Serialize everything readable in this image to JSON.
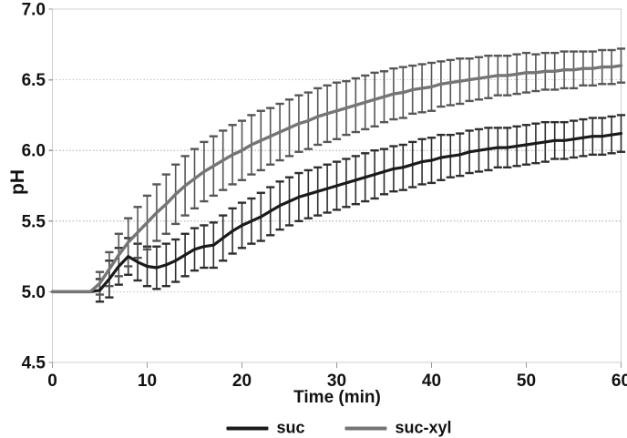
{
  "figure": {
    "background": "#ffffff",
    "plot_border_color": "#cfcfcf",
    "gridline_color": "#c3c3c3",
    "tick_color": "#9a9a9a",
    "text_color": "#111111"
  },
  "axes": {
    "y": {
      "title": "pH",
      "min": 4.5,
      "max": 7.0,
      "ticks": [
        {
          "label": "7.0",
          "value": 7.0
        },
        {
          "label": "6.5",
          "value": 6.5
        },
        {
          "label": "6.0",
          "value": 6.0
        },
        {
          "label": "5.5",
          "value": 5.5
        },
        {
          "label": "5.0",
          "value": 5.0
        },
        {
          "label": "4.5",
          "value": 4.5
        }
      ]
    },
    "x": {
      "title": "Time (min)",
      "min": 0,
      "max": 60,
      "ticks": [
        {
          "label": "0",
          "value": 0
        },
        {
          "label": "10",
          "value": 10
        },
        {
          "label": "20",
          "value": 20
        },
        {
          "label": "30",
          "value": 30
        },
        {
          "label": "40",
          "value": 40
        },
        {
          "label": "50",
          "value": 50
        },
        {
          "label": "60",
          "value": 60
        }
      ]
    }
  },
  "chart_data": {
    "type": "line",
    "title": "",
    "xlabel": "Time (min)",
    "ylabel": "pH",
    "xlim": [
      0,
      60
    ],
    "ylim": [
      4.5,
      7.0
    ],
    "grid": "horizontal dotted gridlines at 5.0, 5.5, 6.0, 6.5",
    "legend_position": "bottom-center",
    "error_bars": "symmetric, one per minute, cap style",
    "x": [
      0,
      1,
      2,
      3,
      4,
      5,
      6,
      7,
      8,
      9,
      10,
      11,
      12,
      13,
      14,
      15,
      16,
      17,
      18,
      19,
      20,
      21,
      22,
      23,
      24,
      25,
      26,
      27,
      28,
      29,
      30,
      31,
      32,
      33,
      34,
      35,
      36,
      37,
      38,
      39,
      40,
      41,
      42,
      43,
      44,
      45,
      46,
      47,
      48,
      49,
      50,
      51,
      52,
      53,
      54,
      55,
      56,
      57,
      58,
      59,
      60
    ],
    "series": [
      {
        "name": "suc",
        "color": "#1a1a1a",
        "line_width": 3.2,
        "error_color": "#2e2e2e",
        "values": [
          5.0,
          5.0,
          5.0,
          5.0,
          5.0,
          5.01,
          5.09,
          5.18,
          5.25,
          5.21,
          5.18,
          5.17,
          5.19,
          5.22,
          5.26,
          5.3,
          5.32,
          5.33,
          5.38,
          5.43,
          5.47,
          5.5,
          5.53,
          5.57,
          5.61,
          5.64,
          5.67,
          5.69,
          5.71,
          5.73,
          5.75,
          5.77,
          5.79,
          5.81,
          5.83,
          5.85,
          5.87,
          5.88,
          5.9,
          5.92,
          5.93,
          5.95,
          5.96,
          5.97,
          5.99,
          6.0,
          6.01,
          6.02,
          6.02,
          6.03,
          6.04,
          6.05,
          6.06,
          6.07,
          6.07,
          6.08,
          6.09,
          6.1,
          6.1,
          6.11,
          6.12
        ],
        "error": [
          0,
          0,
          0,
          0,
          0,
          0.08,
          0.13,
          0.13,
          0.13,
          0.13,
          0.14,
          0.15,
          0.15,
          0.15,
          0.15,
          0.15,
          0.15,
          0.16,
          0.16,
          0.16,
          0.16,
          0.16,
          0.17,
          0.17,
          0.17,
          0.17,
          0.17,
          0.17,
          0.17,
          0.17,
          0.17,
          0.17,
          0.17,
          0.17,
          0.17,
          0.16,
          0.16,
          0.16,
          0.16,
          0.16,
          0.16,
          0.16,
          0.15,
          0.15,
          0.15,
          0.15,
          0.15,
          0.14,
          0.14,
          0.14,
          0.14,
          0.14,
          0.14,
          0.13,
          0.13,
          0.13,
          0.13,
          0.13,
          0.13,
          0.13,
          0.13
        ]
      },
      {
        "name": "suc-xyl",
        "color": "#757575",
        "line_width": 3.4,
        "error_color": "#565656",
        "values": [
          5.0,
          5.0,
          5.0,
          5.0,
          5.0,
          5.06,
          5.16,
          5.26,
          5.35,
          5.42,
          5.49,
          5.56,
          5.62,
          5.69,
          5.75,
          5.8,
          5.85,
          5.89,
          5.93,
          5.97,
          6.0,
          6.04,
          6.07,
          6.1,
          6.13,
          6.16,
          6.19,
          6.21,
          6.24,
          6.26,
          6.28,
          6.3,
          6.32,
          6.34,
          6.36,
          6.38,
          6.4,
          6.41,
          6.43,
          6.44,
          6.45,
          6.47,
          6.48,
          6.49,
          6.5,
          6.51,
          6.52,
          6.53,
          6.53,
          6.54,
          6.55,
          6.55,
          6.56,
          6.56,
          6.57,
          6.57,
          6.58,
          6.58,
          6.59,
          6.59,
          6.6
        ],
        "error": [
          0,
          0,
          0,
          0,
          0,
          0.08,
          0.12,
          0.15,
          0.17,
          0.18,
          0.19,
          0.2,
          0.21,
          0.21,
          0.21,
          0.21,
          0.21,
          0.21,
          0.21,
          0.21,
          0.21,
          0.21,
          0.21,
          0.2,
          0.2,
          0.2,
          0.2,
          0.2,
          0.2,
          0.2,
          0.2,
          0.19,
          0.19,
          0.19,
          0.19,
          0.18,
          0.18,
          0.18,
          0.17,
          0.17,
          0.17,
          0.16,
          0.16,
          0.16,
          0.15,
          0.15,
          0.15,
          0.14,
          0.14,
          0.14,
          0.14,
          0.13,
          0.13,
          0.13,
          0.13,
          0.13,
          0.12,
          0.12,
          0.12,
          0.12,
          0.12
        ]
      }
    ]
  }
}
